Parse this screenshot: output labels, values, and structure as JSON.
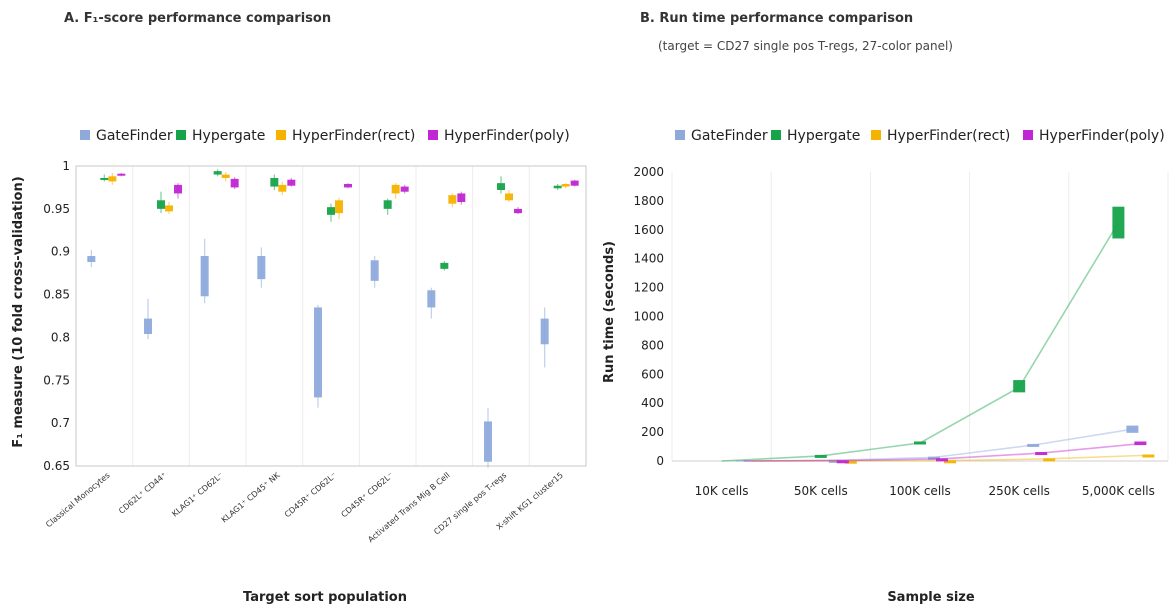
{
  "chart_data": [
    {
      "type": "boxplot",
      "title": "A. F₁-score performance comparison",
      "xlabel": "Target sort population",
      "ylabel": "F₁ measure (10 fold cross-validation)",
      "ylim": [
        0.65,
        1.0
      ],
      "yticks": [
        "0.65",
        "0.7",
        "0.75",
        "0.8",
        "0.85",
        "0.9",
        "0.95",
        "1"
      ],
      "categories": [
        "Classical Monocytes",
        "CD62L⁺ CD44⁺",
        "KLAG1⁺ CD62L⁻",
        "KLAG1⁺ CD45⁺ NK",
        "CD45R⁺ CD62L⁻",
        "CD45R⁺ CD62L⁻",
        "Activated Trans Mig B Cell",
        "CD27 single pos T-regs",
        "X-shift KG1 cluster15"
      ],
      "legend_position": "top",
      "series": [
        {
          "name": "GateFinder",
          "color": "#8eaadb",
          "boxes": [
            [
              0.882,
              0.888,
              0.895,
              0.902
            ],
            [
              0.798,
              0.804,
              0.822,
              0.845
            ],
            [
              0.84,
              0.848,
              0.895,
              0.915
            ],
            [
              0.858,
              0.868,
              0.895,
              0.905
            ],
            [
              0.718,
              0.73,
              0.835,
              0.838
            ],
            [
              0.858,
              0.866,
              0.89,
              0.895
            ],
            [
              0.822,
              0.835,
              0.855,
              0.858
            ],
            [
              0.648,
              0.655,
              0.702,
              0.718
            ],
            [
              0.765,
              0.792,
              0.822,
              0.835
            ]
          ]
        },
        {
          "name": "Hypergate",
          "color": "#16a34a",
          "boxes": [
            [
              0.982,
              0.984,
              0.986,
              0.99
            ],
            [
              0.945,
              0.95,
              0.96,
              0.97
            ],
            [
              0.988,
              0.99,
              0.994,
              0.996
            ],
            [
              0.972,
              0.976,
              0.986,
              0.99
            ],
            [
              0.935,
              0.943,
              0.952,
              0.956
            ],
            [
              0.943,
              0.95,
              0.96,
              0.962
            ],
            [
              0.878,
              0.88,
              0.887,
              0.889
            ],
            [
              0.968,
              0.972,
              0.98,
              0.988
            ],
            [
              0.972,
              0.974,
              0.977,
              0.979
            ]
          ]
        },
        {
          "name": "HyperFinder(rect)",
          "color": "#f5b300",
          "boxes": [
            [
              0.978,
              0.982,
              0.988,
              0.992
            ],
            [
              0.944,
              0.947,
              0.954,
              0.958
            ],
            [
              0.982,
              0.986,
              0.99,
              0.993
            ],
            [
              0.966,
              0.97,
              0.978,
              0.982
            ],
            [
              0.938,
              0.945,
              0.96,
              0.963
            ],
            [
              0.962,
              0.968,
              0.978,
              0.98
            ],
            [
              0.952,
              0.956,
              0.966,
              0.968
            ],
            [
              0.958,
              0.96,
              0.968,
              0.972
            ],
            [
              0.974,
              0.976,
              0.979,
              0.98
            ]
          ]
        },
        {
          "name": "HyperFinder(poly)",
          "color": "#c026d3",
          "boxes": [
            [
              0.988,
              0.989,
              0.991,
              0.992
            ],
            [
              0.962,
              0.968,
              0.978,
              0.98
            ],
            [
              0.973,
              0.975,
              0.985,
              0.987
            ],
            [
              0.976,
              0.977,
              0.984,
              0.986
            ],
            [
              0.974,
              0.975,
              0.979,
              0.98
            ],
            [
              0.968,
              0.97,
              0.976,
              0.978
            ],
            [
              0.955,
              0.958,
              0.968,
              0.97
            ],
            [
              0.944,
              0.945,
              0.95,
              0.952
            ],
            [
              0.976,
              0.977,
              0.983,
              0.984
            ]
          ]
        }
      ]
    },
    {
      "type": "line",
      "title": "B. Run time performance comparison",
      "subtitle": "(target = CD27 single pos T-regs, 27-color panel)",
      "xlabel": "Sample size",
      "ylabel": "Run time (seconds)",
      "categories": [
        "10K cells",
        "50K cells",
        "100K cells",
        "250K cells",
        "5,000K cells"
      ],
      "ylim": [
        0,
        2000
      ],
      "yticks": [
        "0",
        "200",
        "400",
        "600",
        "800",
        "1000",
        "1200",
        "1400",
        "1600",
        "1800",
        "2000"
      ],
      "legend_position": "top",
      "series": [
        {
          "name": "GateFinder",
          "color": "#8eaadb",
          "values": [
            0,
            5,
            25,
            110,
            220
          ],
          "ranges": [
            [
              0,
              0
            ],
            [
              3,
              8
            ],
            [
              20,
              30
            ],
            [
              100,
              118
            ],
            [
              195,
              245
            ]
          ]
        },
        {
          "name": "Hypergate",
          "color": "#16a34a",
          "values": [
            0,
            35,
            125,
            510,
            1650
          ],
          "ranges": [
            [
              0,
              0
            ],
            [
              30,
              42
            ],
            [
              115,
              135
            ],
            [
              475,
              560
            ],
            [
              1540,
              1760
            ]
          ]
        },
        {
          "name": "HyperFinder(rect)",
          "color": "#f5b300",
          "values": [
            0,
            1,
            3,
            15,
            40
          ],
          "ranges": [
            [
              0,
              0
            ],
            [
              0,
              2
            ],
            [
              2,
              5
            ],
            [
              12,
              18
            ],
            [
              35,
              45
            ]
          ]
        },
        {
          "name": "HyperFinder(poly)",
          "color": "#c026d3",
          "values": [
            0,
            3,
            15,
            55,
            120
          ],
          "ranges": [
            [
              0,
              0
            ],
            [
              2,
              5
            ],
            [
              12,
              18
            ],
            [
              48,
              62
            ],
            [
              110,
              135
            ]
          ]
        }
      ]
    }
  ]
}
